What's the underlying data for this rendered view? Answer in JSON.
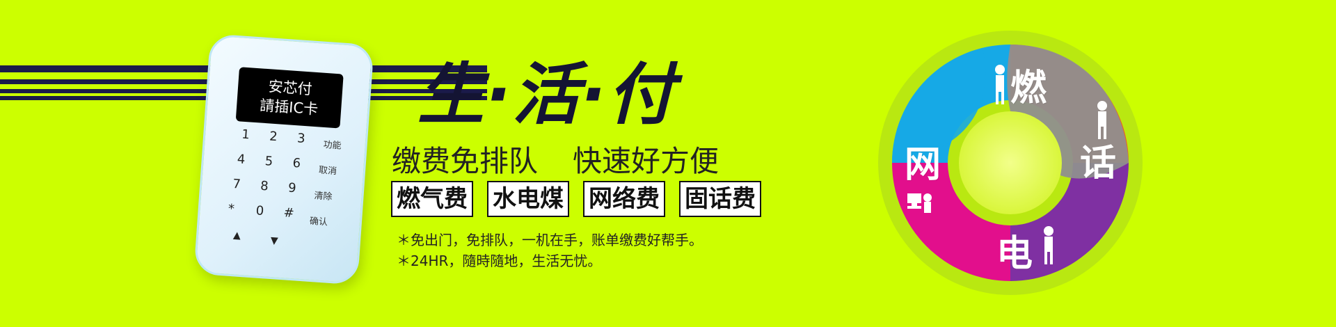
{
  "device": {
    "screen_line1": "安芯付",
    "screen_line2": "請插IC卡",
    "keys": [
      "1",
      "2",
      "3",
      "4",
      "5",
      "6",
      "7",
      "8",
      "9",
      "*",
      "0",
      "#"
    ],
    "function_keys": [
      "功能",
      "取消",
      "清除",
      "确认"
    ],
    "arrows": [
      "▲",
      "▼"
    ]
  },
  "banner": {
    "title": "生·活·付",
    "subtitle_left": "缴费免排队",
    "subtitle_right": "快速好方便",
    "tags": [
      "燃气费",
      "水电煤",
      "网络费",
      "固话费"
    ],
    "notes": [
      "＊免出门，免排队，一机在手，账单缴费好帮手。",
      "＊24HR，隨時隨地，生活无忧。"
    ]
  },
  "services": {
    "top": "燃",
    "right": "话",
    "bottom": "电",
    "left": "网"
  },
  "colors": {
    "background": "#CCFF00",
    "stripe": "#1b1b4a",
    "orange": "#F25A1A",
    "gray": "#8F8F8F",
    "magenta": "#E20F8C",
    "blue": "#16A9E6",
    "center": "#E4FF61"
  }
}
